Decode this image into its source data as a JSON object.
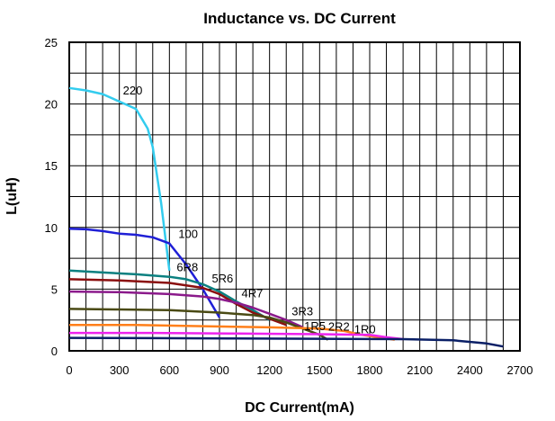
{
  "chart_data": {
    "type": "line",
    "title": "Inductance vs. DC Current",
    "xlabel": "DC Current(mA)",
    "ylabel": "L(uH)",
    "xlim": [
      0,
      2700
    ],
    "ylim": [
      0,
      25
    ],
    "x_ticks": [
      "0",
      "300",
      "600",
      "900",
      "1200",
      "1500",
      "1800",
      "2100",
      "2400",
      "2700"
    ],
    "y_ticks": [
      "0",
      "5",
      "10",
      "15",
      "20",
      "25"
    ],
    "grid": true,
    "legend": "inline labels",
    "series": [
      {
        "name": "220",
        "color": "#33ccee",
        "points": [
          [
            0,
            21.3
          ],
          [
            100,
            21.1
          ],
          [
            200,
            20.8
          ],
          [
            300,
            20.2
          ],
          [
            400,
            19.6
          ],
          [
            470,
            18
          ],
          [
            500,
            16.5
          ],
          [
            550,
            12
          ],
          [
            600,
            6.5
          ]
        ]
      },
      {
        "name": "100",
        "color": "#1f1fd6",
        "points": [
          [
            0,
            9.9
          ],
          [
            100,
            9.85
          ],
          [
            200,
            9.7
          ],
          [
            300,
            9.5
          ],
          [
            400,
            9.4
          ],
          [
            500,
            9.2
          ],
          [
            600,
            8.7
          ],
          [
            700,
            7
          ],
          [
            800,
            5
          ],
          [
            900,
            2.7
          ]
        ]
      },
      {
        "name": "6R8",
        "color": "#0b8080",
        "points": [
          [
            0,
            6.5
          ],
          [
            200,
            6.35
          ],
          [
            400,
            6.2
          ],
          [
            600,
            6.0
          ],
          [
            700,
            5.8
          ],
          [
            800,
            5.4
          ],
          [
            900,
            4.8
          ],
          [
            1000,
            4.0
          ],
          [
            1100,
            3.3
          ],
          [
            1200,
            2.5
          ]
        ]
      },
      {
        "name": "5R6",
        "color": "#8b0f0f",
        "points": [
          [
            0,
            5.8
          ],
          [
            300,
            5.7
          ],
          [
            600,
            5.5
          ],
          [
            800,
            5.1
          ],
          [
            900,
            4.6
          ],
          [
            1000,
            3.8
          ],
          [
            1100,
            3.1
          ],
          [
            1200,
            2.6
          ],
          [
            1300,
            2.1
          ]
        ]
      },
      {
        "name": "4R7",
        "color": "#8b1a8b",
        "points": [
          [
            0,
            4.8
          ],
          [
            300,
            4.75
          ],
          [
            600,
            4.6
          ],
          [
            800,
            4.4
          ],
          [
            900,
            4.2
          ],
          [
            1000,
            3.9
          ],
          [
            1100,
            3.5
          ],
          [
            1200,
            3.0
          ],
          [
            1300,
            2.5
          ],
          [
            1400,
            1.9
          ]
        ]
      },
      {
        "name": "3R3",
        "color": "#4a4a14",
        "points": [
          [
            0,
            3.4
          ],
          [
            300,
            3.35
          ],
          [
            600,
            3.3
          ],
          [
            900,
            3.1
          ],
          [
            1100,
            2.9
          ],
          [
            1200,
            2.7
          ],
          [
            1300,
            2.3
          ],
          [
            1400,
            1.8
          ],
          [
            1500,
            1.3
          ],
          [
            1550,
            0.9
          ]
        ]
      },
      {
        "name": "2R2",
        "color": "#ff7f1a",
        "points": [
          [
            0,
            2.1
          ],
          [
            400,
            2.1
          ],
          [
            800,
            2.0
          ],
          [
            1200,
            1.9
          ],
          [
            1500,
            1.8
          ],
          [
            1650,
            1.6
          ],
          [
            1750,
            1.3
          ],
          [
            1850,
            1.1
          ],
          [
            1950,
            0.9
          ]
        ]
      },
      {
        "name": "1R5",
        "color": "#ee22ee",
        "points": [
          [
            0,
            1.45
          ],
          [
            500,
            1.45
          ],
          [
            1000,
            1.4
          ],
          [
            1500,
            1.35
          ],
          [
            1800,
            1.3
          ],
          [
            1900,
            1.1
          ],
          [
            2000,
            0.95
          ]
        ]
      },
      {
        "name": "1R0",
        "color": "#0a1f66",
        "points": [
          [
            0,
            1.05
          ],
          [
            500,
            1.03
          ],
          [
            1000,
            1.0
          ],
          [
            1500,
            0.98
          ],
          [
            2000,
            0.95
          ],
          [
            2300,
            0.85
          ],
          [
            2500,
            0.6
          ],
          [
            2600,
            0.35
          ]
        ]
      }
    ]
  }
}
